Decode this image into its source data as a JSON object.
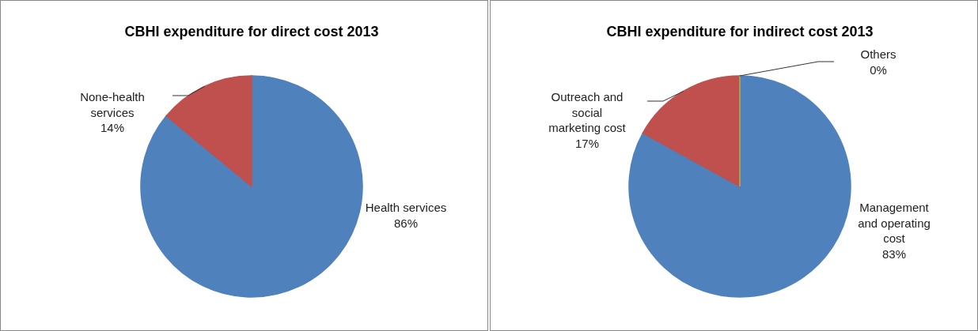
{
  "chart_data": [
    {
      "type": "pie",
      "title": "CBHI expenditure for direct cost 2013",
      "categories": [
        "Health services",
        "None-health services"
      ],
      "values": [
        86,
        14
      ],
      "colors": [
        "#4f81bd",
        "#c0504d"
      ],
      "value_labels": [
        "86%",
        "14%"
      ]
    },
    {
      "type": "pie",
      "title": "CBHI expenditure for indirect cost 2013",
      "categories": [
        "Management and operating cost",
        "Outreach and social marketing cost",
        "Others"
      ],
      "values": [
        83,
        17,
        0
      ],
      "colors": [
        "#4f81bd",
        "#c0504d",
        "#9bbb59"
      ],
      "value_labels": [
        "83%",
        "17%",
        "0%"
      ]
    }
  ]
}
